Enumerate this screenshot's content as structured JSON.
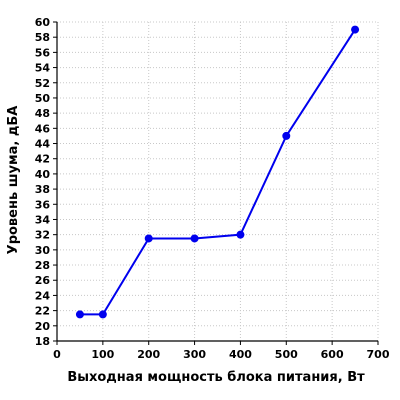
{
  "chart_data": {
    "type": "line",
    "title": "",
    "xlabel": "Выходная мощность блока питания, Вт",
    "ylabel": "Уровень шума, дБА",
    "xlim": [
      0,
      700
    ],
    "ylim": [
      18,
      60
    ],
    "x_ticks": [
      0,
      100,
      200,
      300,
      400,
      500,
      600,
      700
    ],
    "y_ticks": [
      18,
      20,
      22,
      24,
      26,
      28,
      30,
      32,
      34,
      36,
      38,
      40,
      42,
      44,
      46,
      48,
      50,
      52,
      54,
      56,
      58,
      60
    ],
    "grid": true,
    "legend": "none",
    "series": [
      {
        "color": "#0000ee",
        "marker": "circle",
        "points": [
          {
            "x": 50,
            "y": 21.5
          },
          {
            "x": 100,
            "y": 21.5
          },
          {
            "x": 200,
            "y": 31.5
          },
          {
            "x": 300,
            "y": 31.5
          },
          {
            "x": 400,
            "y": 32
          },
          {
            "x": 500,
            "y": 45
          },
          {
            "x": 650,
            "y": 59
          }
        ]
      }
    ]
  }
}
